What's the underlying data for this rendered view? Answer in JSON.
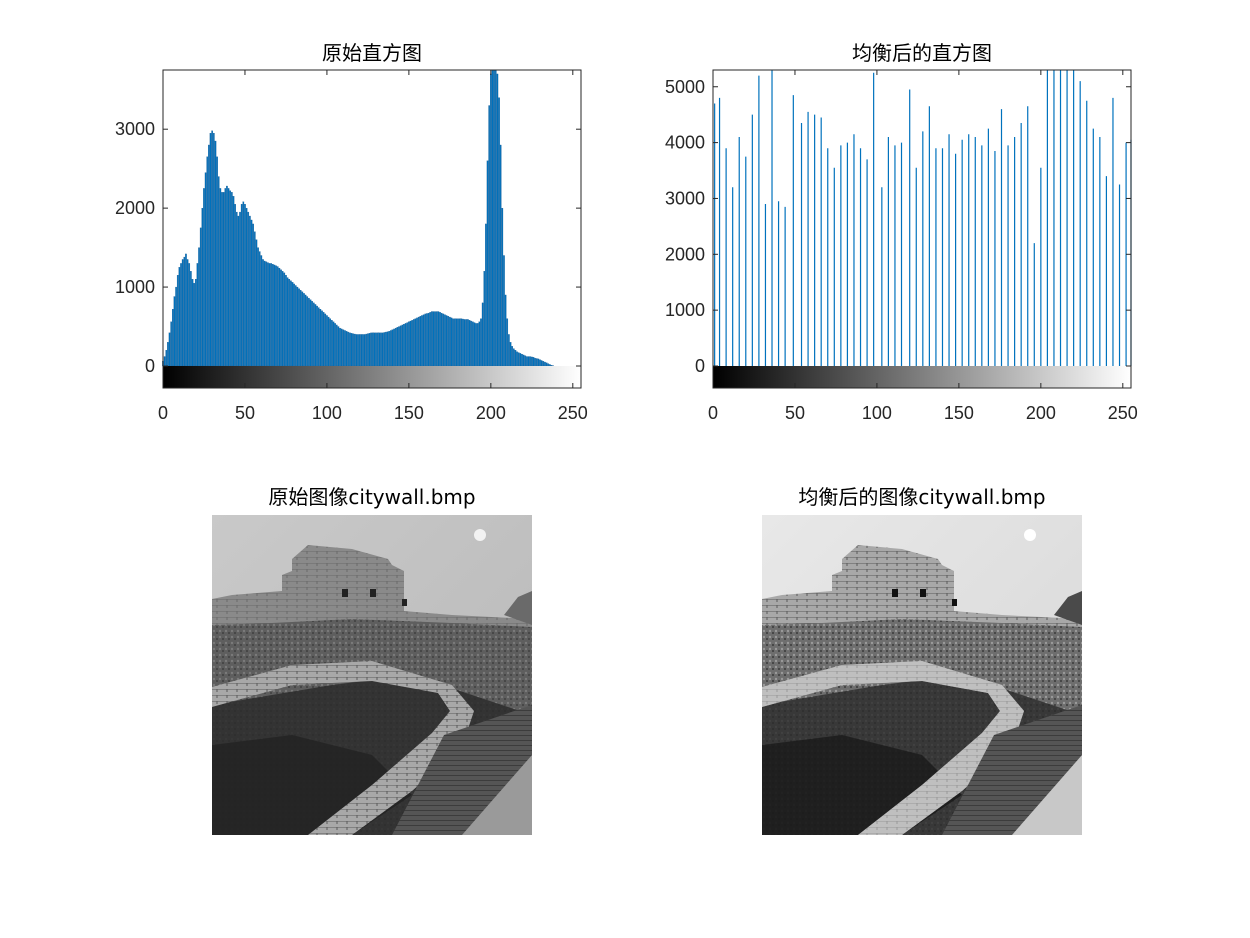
{
  "figure": {
    "panels": [
      {
        "title": "原始直方图"
      },
      {
        "title": "均衡后的直方图"
      },
      {
        "title": "原始图像citywall.bmp"
      },
      {
        "title": "均衡后的图像citywall.bmp"
      }
    ]
  },
  "chart_data": [
    {
      "type": "bar",
      "title": "原始直方图",
      "xlabel": "",
      "ylabel": "",
      "xlim": [
        0,
        255
      ],
      "ylim": [
        0,
        3750
      ],
      "xticks": [
        0,
        50,
        100,
        150,
        200,
        250
      ],
      "yticks": [
        0,
        1000,
        2000,
        3000
      ],
      "colorbar": "gray ramp 0–255 below axis",
      "bar_color": "#0072BD",
      "x_start": 0,
      "values": [
        60,
        120,
        200,
        300,
        420,
        560,
        720,
        880,
        1000,
        1150,
        1250,
        1300,
        1350,
        1380,
        1420,
        1350,
        1300,
        1200,
        1100,
        1050,
        1100,
        1300,
        1500,
        1750,
        2000,
        2250,
        2450,
        2650,
        2800,
        2950,
        2980,
        2950,
        2850,
        2650,
        2400,
        2250,
        2200,
        2200,
        2250,
        2280,
        2250,
        2220,
        2200,
        2150,
        2050,
        1950,
        1900,
        1950,
        2050,
        2080,
        2050,
        2000,
        1950,
        1900,
        1850,
        1800,
        1700,
        1600,
        1500,
        1450,
        1400,
        1350,
        1330,
        1320,
        1310,
        1300,
        1300,
        1290,
        1280,
        1270,
        1260,
        1240,
        1220,
        1200,
        1180,
        1150,
        1120,
        1100,
        1080,
        1060,
        1040,
        1020,
        1000,
        980,
        960,
        940,
        920,
        900,
        880,
        860,
        840,
        820,
        800,
        780,
        760,
        740,
        720,
        700,
        680,
        660,
        640,
        620,
        600,
        580,
        560,
        540,
        520,
        500,
        480,
        470,
        460,
        450,
        440,
        430,
        420,
        415,
        410,
        405,
        400,
        400,
        400,
        400,
        400,
        400,
        405,
        410,
        415,
        420,
        420,
        420,
        420,
        420,
        420,
        420,
        420,
        425,
        430,
        435,
        440,
        450,
        460,
        470,
        480,
        490,
        500,
        510,
        520,
        530,
        540,
        550,
        560,
        570,
        580,
        590,
        600,
        610,
        620,
        630,
        640,
        650,
        660,
        665,
        670,
        680,
        690,
        690,
        690,
        690,
        690,
        680,
        670,
        660,
        650,
        640,
        630,
        620,
        610,
        600,
        600,
        600,
        600,
        600,
        600,
        595,
        590,
        590,
        590,
        580,
        570,
        560,
        550,
        540,
        540,
        560,
        600,
        800,
        1200,
        1800,
        2600,
        3300,
        3700,
        3750,
        3750,
        3750,
        3700,
        3400,
        2800,
        2000,
        1400,
        900,
        600,
        400,
        300,
        250,
        220,
        200,
        180,
        170,
        160,
        150,
        140,
        130,
        120,
        120,
        120,
        115,
        110,
        100,
        95,
        90,
        80,
        70,
        60,
        50,
        40,
        30,
        20,
        10,
        5,
        0,
        0,
        0,
        0,
        0,
        0,
        0,
        0,
        0,
        0,
        0,
        0,
        0,
        0
      ]
    },
    {
      "type": "bar",
      "title": "均衡后的直方图",
      "xlabel": "",
      "ylabel": "",
      "xlim": [
        0,
        255
      ],
      "ylim": [
        0,
        5300
      ],
      "xticks": [
        0,
        50,
        100,
        150,
        200,
        250
      ],
      "yticks": [
        0,
        1000,
        2000,
        3000,
        4000,
        5000
      ],
      "colorbar": "gray ramp 0–255 below axis",
      "bar_color": "#0072BD",
      "stems": {
        "x": [
          1,
          4,
          8,
          12,
          16,
          20,
          24,
          28,
          32,
          36,
          40,
          44,
          49,
          54,
          58,
          62,
          66,
          70,
          74,
          78,
          82,
          86,
          90,
          94,
          98,
          103,
          107,
          111,
          115,
          120,
          124,
          128,
          132,
          136,
          140,
          144,
          148,
          152,
          156,
          160,
          164,
          168,
          172,
          176,
          180,
          184,
          188,
          192,
          196,
          200,
          204,
          208,
          212,
          216,
          220,
          224,
          228,
          232,
          236,
          240,
          244,
          248,
          252,
          255
        ],
        "values": [
          4700,
          4800,
          3900,
          3200,
          4100,
          3750,
          4500,
          5200,
          2900,
          5300,
          2950,
          2850,
          4850,
          4350,
          4550,
          4500,
          4450,
          3900,
          3550,
          3950,
          4000,
          4150,
          3900,
          3700,
          5250,
          3200,
          4100,
          3950,
          4000,
          4950,
          3550,
          4200,
          4650,
          3900,
          3900,
          4150,
          3800,
          4050,
          4150,
          4100,
          3950,
          4250,
          3850,
          4600,
          3950,
          4100,
          4350,
          4650,
          2200,
          3550,
          5300,
          5300,
          5300,
          5300,
          5300,
          5100,
          4750,
          4250,
          4100,
          3400,
          4800,
          3250,
          4000,
          4050
        ]
      }
    }
  ]
}
